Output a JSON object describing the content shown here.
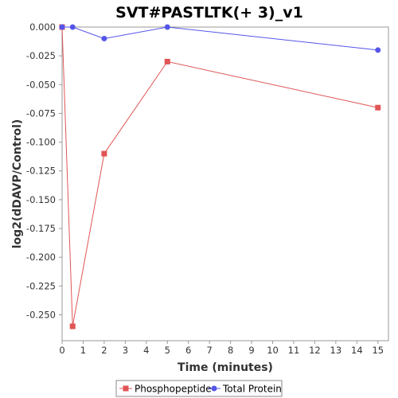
{
  "chart_data": {
    "type": "line",
    "title": "SVT#PASTLTK(+ 3)_v1",
    "xlabel": "Time (minutes)",
    "ylabel": "log2(dDAVP/Control)",
    "xlim": [
      0,
      15.5
    ],
    "ylim": [
      -0.2725,
      0.0
    ],
    "xticks": [
      0,
      1,
      2,
      3,
      4,
      5,
      6,
      7,
      8,
      9,
      10,
      11,
      12,
      13,
      14,
      15
    ],
    "yticks": [
      0.0,
      -0.025,
      -0.05,
      -0.075,
      -0.1,
      -0.125,
      -0.15,
      -0.175,
      -0.2,
      -0.225,
      -0.25
    ],
    "ytick_labels": [
      "0.000",
      "-0.025",
      "-0.050",
      "-0.075",
      "-0.100",
      "-0.125",
      "-0.150",
      "-0.175",
      "-0.200",
      "-0.225",
      "-0.250"
    ],
    "grid": false,
    "legend_position": "bottom",
    "series": [
      {
        "name": "Phosphopeptide",
        "color": "#e05555",
        "marker": "square",
        "x": [
          0,
          0.5,
          2,
          5,
          15
        ],
        "y": [
          0.0,
          -0.26,
          -0.11,
          -0.03,
          -0.07
        ]
      },
      {
        "name": "Total Protein",
        "color": "#5555e8",
        "marker": "circle",
        "x": [
          0,
          0.5,
          2,
          5,
          15
        ],
        "y": [
          0.0,
          0.0,
          -0.01,
          0.0,
          -0.02
        ]
      }
    ]
  }
}
